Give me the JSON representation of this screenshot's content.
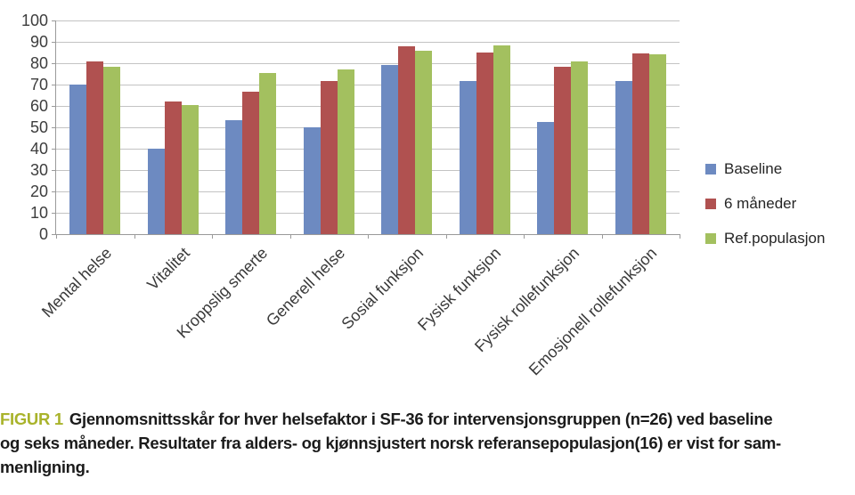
{
  "caption": {
    "label": "FIGUR 1",
    "line1": "Gjennomsnittsskår for hver helsefaktor i SF-36 for intervensjonsgruppen (n=26) ved baseline",
    "line2": "og seks måneder. Resultater fra alders- og kjønnsjustert norsk referansepopulasjon(16) er vist for sam-",
    "line3": "menligning."
  },
  "chart_data": {
    "type": "bar",
    "title": "",
    "xlabel": "",
    "ylabel": "",
    "categories": [
      "Mental helse",
      "Vitalitet",
      "Kroppslig smerte",
      "Generell helse",
      "Sosial funksjon",
      "Fysisk funksjon",
      "Fysisk rollefunksjon",
      "Emosjonell rollefunksjon"
    ],
    "series": [
      {
        "name": "Baseline",
        "color": "#6d8ac1",
        "values": [
          70,
          40,
          53.5,
          50,
          79,
          71.5,
          52.5,
          71.5
        ]
      },
      {
        "name": "6 måneder",
        "color": "#b05150",
        "values": [
          81,
          62,
          66.5,
          71.5,
          88,
          85,
          78.5,
          84.5
        ]
      },
      {
        "name": "Ref.populasjon",
        "color": "#a3c05f",
        "values": [
          78.5,
          60.5,
          75.5,
          77,
          86,
          88.5,
          81,
          84
        ]
      }
    ],
    "ylim": [
      0,
      100
    ],
    "ytick_step": 10,
    "grid": true,
    "legend_position": "right",
    "colors": {
      "gridline": "#c3c3c3",
      "axis": "#9a9a9a",
      "tick_label": "#3d3d3d",
      "figure_label": "#a9b32b"
    }
  }
}
